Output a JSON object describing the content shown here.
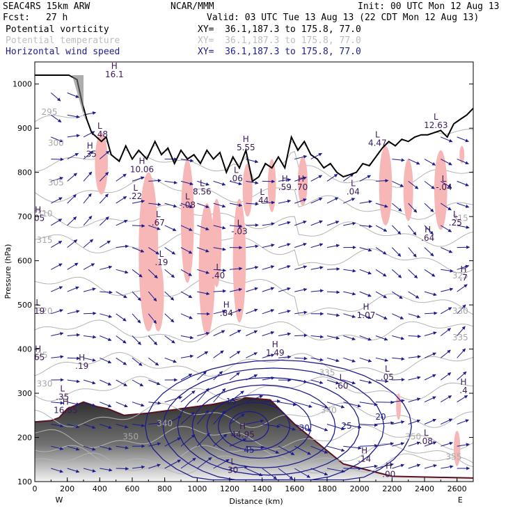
{
  "header": {
    "model": "SEAC4RS 15km ARW",
    "center": "NCAR/MMM",
    "init": "Init: 00 UTC Mon 12 Aug 13",
    "fcst_label": "Fcst:",
    "fcst_value": "27 h",
    "valid": "Valid: 03 UTC Tue 13 Aug 13 (22 CDT Mon 12 Aug 13)",
    "fields": [
      {
        "name": "Potential vorticity",
        "xy": "XY=  36.1,187.3 to 175.8, 77.0",
        "color": "#000000"
      },
      {
        "name": "Potential temperature",
        "xy": "XY=  36.1,187.3 to 175.8, 77.0",
        "color": "#bdbdbd"
      },
      {
        "name": "Horizontal wind speed",
        "xy": "XY=  36.1,187.3 to 175.8, 77.0",
        "color": "#1c1c8c"
      }
    ]
  },
  "chart_data": {
    "type": "cross-section",
    "xlabel": "Distance (km)",
    "ylabel": "Pressure (hPa)",
    "xlim": [
      0,
      2700
    ],
    "ylim": [
      1050,
      100
    ],
    "x_ticks": [
      0,
      200,
      400,
      600,
      800,
      1000,
      1200,
      1400,
      1600,
      1800,
      2000,
      2200,
      2400,
      2600
    ],
    "y_ticks": [
      100,
      200,
      300,
      400,
      500,
      600,
      700,
      800,
      900,
      1000
    ],
    "x_end_labels": [
      "W",
      "E"
    ],
    "terrain_pressure": [
      [
        0,
        1020
      ],
      [
        210,
        1020
      ],
      [
        260,
        1010
      ],
      [
        290,
        960
      ],
      [
        320,
        920
      ],
      [
        350,
        890
      ],
      [
        380,
        880
      ],
      [
        410,
        870
      ],
      [
        440,
        880
      ],
      [
        470,
        840
      ],
      [
        520,
        825
      ],
      [
        560,
        860
      ],
      [
        600,
        830
      ],
      [
        640,
        850
      ],
      [
        690,
        830
      ],
      [
        740,
        870
      ],
      [
        780,
        840
      ],
      [
        820,
        855
      ],
      [
        860,
        820
      ],
      [
        900,
        850
      ],
      [
        940,
        830
      ],
      [
        980,
        840
      ],
      [
        1020,
        820
      ],
      [
        1060,
        850
      ],
      [
        1100,
        830
      ],
      [
        1140,
        845
      ],
      [
        1180,
        800
      ],
      [
        1220,
        835
      ],
      [
        1260,
        810
      ],
      [
        1300,
        850
      ],
      [
        1340,
        780
      ],
      [
        1380,
        790
      ],
      [
        1420,
        820
      ],
      [
        1460,
        810
      ],
      [
        1500,
        835
      ],
      [
        1540,
        810
      ],
      [
        1580,
        880
      ],
      [
        1620,
        850
      ],
      [
        1660,
        870
      ],
      [
        1700,
        840
      ],
      [
        1740,
        830
      ],
      [
        1780,
        810
      ],
      [
        1820,
        820
      ],
      [
        1860,
        800
      ],
      [
        1900,
        790
      ],
      [
        1940,
        795
      ],
      [
        1980,
        800
      ],
      [
        2020,
        820
      ],
      [
        2060,
        815
      ],
      [
        2100,
        835
      ],
      [
        2140,
        855
      ],
      [
        2180,
        870
      ],
      [
        2220,
        860
      ],
      [
        2260,
        875
      ],
      [
        2300,
        870
      ],
      [
        2340,
        880
      ],
      [
        2380,
        885
      ],
      [
        2420,
        885
      ],
      [
        2460,
        890
      ],
      [
        2500,
        895
      ],
      [
        2540,
        880
      ],
      [
        2580,
        910
      ],
      [
        2620,
        920
      ],
      [
        2660,
        930
      ],
      [
        2700,
        945
      ]
    ],
    "theta_contour_labels": [
      {
        "x": 590,
        "p": 195,
        "v": "350"
      },
      {
        "x": 800,
        "p": 225,
        "v": "340"
      },
      {
        "x": 60,
        "p": 315,
        "v": "330"
      },
      {
        "x": 30,
        "p": 380,
        "v": "325"
      },
      {
        "x": 60,
        "p": 480,
        "v": "320"
      },
      {
        "x": 60,
        "p": 640,
        "v": "315"
      },
      {
        "x": 60,
        "p": 700,
        "v": "310"
      },
      {
        "x": 130,
        "p": 770,
        "v": "305"
      },
      {
        "x": 130,
        "p": 860,
        "v": "300"
      },
      {
        "x": 90,
        "p": 930,
        "v": "295"
      },
      {
        "x": 2620,
        "p": 420,
        "v": "335"
      },
      {
        "x": 2620,
        "p": 480,
        "v": "330"
      },
      {
        "x": 2620,
        "p": 560,
        "v": "325"
      },
      {
        "x": 2620,
        "p": 690,
        "v": "315"
      },
      {
        "x": 1800,
        "p": 340,
        "v": "335"
      },
      {
        "x": 2330,
        "p": 195,
        "v": "350"
      },
      {
        "x": 2580,
        "p": 150,
        "v": "355"
      },
      {
        "x": 1810,
        "p": 255,
        "v": "340"
      }
    ],
    "wind_contour_labels": [
      {
        "x": 1320,
        "p": 165,
        "v": "45"
      },
      {
        "x": 1660,
        "p": 215,
        "v": "30"
      },
      {
        "x": 1920,
        "p": 220,
        "v": "25"
      },
      {
        "x": 2130,
        "p": 240,
        "v": "20"
      },
      {
        "x": 1210,
        "p": 275,
        "v": "15"
      }
    ],
    "hl_labels": [
      {
        "t": "H",
        "x": 490,
        "p": 1015,
        "v": "16.1"
      },
      {
        "t": "H",
        "x": 340,
        "p": 835,
        "v": ".35"
      },
      {
        "t": "L",
        "x": 400,
        "p": 880,
        "v": "-.48"
      },
      {
        "t": "H",
        "x": 660,
        "p": 800,
        "v": "10.06"
      },
      {
        "t": "L",
        "x": 620,
        "p": 740,
        "v": ".22"
      },
      {
        "t": "L",
        "x": 760,
        "p": 680,
        "v": ".67"
      },
      {
        "t": "L",
        "x": 780,
        "p": 590,
        "v": ".19"
      },
      {
        "t": "L",
        "x": 940,
        "p": 720,
        "v": "-.08"
      },
      {
        "t": "L",
        "x": 1030,
        "p": 750,
        "v": "8.56"
      },
      {
        "t": "L",
        "x": 1130,
        "p": 560,
        "v": ".40"
      },
      {
        "t": "H",
        "x": 1180,
        "p": 475,
        "v": ".84"
      },
      {
        "t": "L",
        "x": 1240,
        "p": 780,
        "v": ".06"
      },
      {
        "t": "L",
        "x": 1260,
        "p": 660,
        "v": "-.03"
      },
      {
        "t": "H",
        "x": 1300,
        "p": 850,
        "v": "5.55"
      },
      {
        "t": "L",
        "x": 1400,
        "p": 730,
        "v": ".44"
      },
      {
        "t": "H",
        "x": 1540,
        "p": 760,
        "v": ".59"
      },
      {
        "t": "H",
        "x": 1640,
        "p": 760,
        "v": ".70"
      },
      {
        "t": "L",
        "x": 1960,
        "p": 750,
        "v": ".04"
      },
      {
        "t": "H",
        "x": 2040,
        "p": 470,
        "v": "1.07"
      },
      {
        "t": "L",
        "x": 2110,
        "p": 860,
        "v": "4.47"
      },
      {
        "t": "H",
        "x": 2420,
        "p": 645,
        "v": ".64"
      },
      {
        "t": "L",
        "x": 2470,
        "p": 900,
        "v": "12.63"
      },
      {
        "t": "L",
        "x": 2520,
        "p": 760,
        "v": "-.04"
      },
      {
        "t": "L",
        "x": 2590,
        "p": 680,
        "v": ".25"
      },
      {
        "t": "H",
        "x": 1480,
        "p": 385,
        "v": "1.49"
      },
      {
        "t": "L",
        "x": 1890,
        "p": 310,
        "v": ".60"
      },
      {
        "t": "L",
        "x": 2170,
        "p": 330,
        "v": ".05"
      },
      {
        "t": "H",
        "x": 290,
        "p": 355,
        "v": ".19"
      },
      {
        "t": "H",
        "x": 20,
        "p": 375,
        "v": ".65"
      },
      {
        "t": "L",
        "x": 20,
        "p": 480,
        "v": ".19"
      },
      {
        "t": "H",
        "x": 20,
        "p": 690,
        "v": ".05"
      },
      {
        "t": "H",
        "x": 2640,
        "p": 300,
        "v": ".4"
      },
      {
        "t": "H",
        "x": 2640,
        "p": 555,
        "v": ".7"
      },
      {
        "t": "L",
        "x": 2410,
        "p": 185,
        "v": ".08"
      },
      {
        "t": "H",
        "x": 1280,
        "p": 200,
        "v": "44.95"
      },
      {
        "t": "H",
        "x": 190,
        "p": 255,
        "v": "16.85"
      },
      {
        "t": "L",
        "x": 170,
        "p": 285,
        "v": ".35"
      },
      {
        "t": "H",
        "x": 2030,
        "p": 145,
        "v": ".14"
      },
      {
        "t": "H",
        "x": 2180,
        "p": 110,
        "v": ".00"
      },
      {
        "t": "L",
        "x": 1220,
        "p": 120,
        "v": "30"
      }
    ],
    "legend": "none",
    "grid": false
  }
}
